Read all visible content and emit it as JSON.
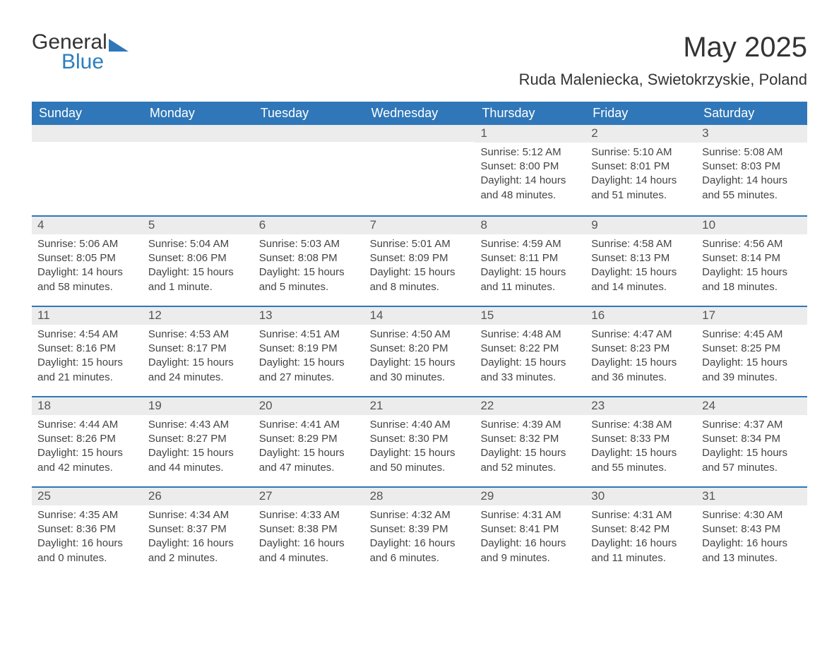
{
  "brand": {
    "word1": "General",
    "word2": "Blue",
    "icon_color": "#2f77b8"
  },
  "title": {
    "month_year": "May 2025",
    "location": "Ruda Maleniecka, Swietokrzyskie, Poland"
  },
  "style": {
    "header_bg": "#2f77b8",
    "header_fg": "#ffffff",
    "daynum_bg": "#ececec",
    "week_border": "#2f77b8",
    "text_color": "#444444",
    "title_color": "#333333",
    "month_fontsize": 40,
    "location_fontsize": 22,
    "weekday_fontsize": 18,
    "body_fontsize": 15
  },
  "weekdays": [
    "Sunday",
    "Monday",
    "Tuesday",
    "Wednesday",
    "Thursday",
    "Friday",
    "Saturday"
  ],
  "weeks": [
    [
      {
        "empty": true
      },
      {
        "empty": true
      },
      {
        "empty": true
      },
      {
        "empty": true
      },
      {
        "num": "1",
        "sunrise": "Sunrise: 5:12 AM",
        "sunset": "Sunset: 8:00 PM",
        "daylight": "Daylight: 14 hours and 48 minutes."
      },
      {
        "num": "2",
        "sunrise": "Sunrise: 5:10 AM",
        "sunset": "Sunset: 8:01 PM",
        "daylight": "Daylight: 14 hours and 51 minutes."
      },
      {
        "num": "3",
        "sunrise": "Sunrise: 5:08 AM",
        "sunset": "Sunset: 8:03 PM",
        "daylight": "Daylight: 14 hours and 55 minutes."
      }
    ],
    [
      {
        "num": "4",
        "sunrise": "Sunrise: 5:06 AM",
        "sunset": "Sunset: 8:05 PM",
        "daylight": "Daylight: 14 hours and 58 minutes."
      },
      {
        "num": "5",
        "sunrise": "Sunrise: 5:04 AM",
        "sunset": "Sunset: 8:06 PM",
        "daylight": "Daylight: 15 hours and 1 minute."
      },
      {
        "num": "6",
        "sunrise": "Sunrise: 5:03 AM",
        "sunset": "Sunset: 8:08 PM",
        "daylight": "Daylight: 15 hours and 5 minutes."
      },
      {
        "num": "7",
        "sunrise": "Sunrise: 5:01 AM",
        "sunset": "Sunset: 8:09 PM",
        "daylight": "Daylight: 15 hours and 8 minutes."
      },
      {
        "num": "8",
        "sunrise": "Sunrise: 4:59 AM",
        "sunset": "Sunset: 8:11 PM",
        "daylight": "Daylight: 15 hours and 11 minutes."
      },
      {
        "num": "9",
        "sunrise": "Sunrise: 4:58 AM",
        "sunset": "Sunset: 8:13 PM",
        "daylight": "Daylight: 15 hours and 14 minutes."
      },
      {
        "num": "10",
        "sunrise": "Sunrise: 4:56 AM",
        "sunset": "Sunset: 8:14 PM",
        "daylight": "Daylight: 15 hours and 18 minutes."
      }
    ],
    [
      {
        "num": "11",
        "sunrise": "Sunrise: 4:54 AM",
        "sunset": "Sunset: 8:16 PM",
        "daylight": "Daylight: 15 hours and 21 minutes."
      },
      {
        "num": "12",
        "sunrise": "Sunrise: 4:53 AM",
        "sunset": "Sunset: 8:17 PM",
        "daylight": "Daylight: 15 hours and 24 minutes."
      },
      {
        "num": "13",
        "sunrise": "Sunrise: 4:51 AM",
        "sunset": "Sunset: 8:19 PM",
        "daylight": "Daylight: 15 hours and 27 minutes."
      },
      {
        "num": "14",
        "sunrise": "Sunrise: 4:50 AM",
        "sunset": "Sunset: 8:20 PM",
        "daylight": "Daylight: 15 hours and 30 minutes."
      },
      {
        "num": "15",
        "sunrise": "Sunrise: 4:48 AM",
        "sunset": "Sunset: 8:22 PM",
        "daylight": "Daylight: 15 hours and 33 minutes."
      },
      {
        "num": "16",
        "sunrise": "Sunrise: 4:47 AM",
        "sunset": "Sunset: 8:23 PM",
        "daylight": "Daylight: 15 hours and 36 minutes."
      },
      {
        "num": "17",
        "sunrise": "Sunrise: 4:45 AM",
        "sunset": "Sunset: 8:25 PM",
        "daylight": "Daylight: 15 hours and 39 minutes."
      }
    ],
    [
      {
        "num": "18",
        "sunrise": "Sunrise: 4:44 AM",
        "sunset": "Sunset: 8:26 PM",
        "daylight": "Daylight: 15 hours and 42 minutes."
      },
      {
        "num": "19",
        "sunrise": "Sunrise: 4:43 AM",
        "sunset": "Sunset: 8:27 PM",
        "daylight": "Daylight: 15 hours and 44 minutes."
      },
      {
        "num": "20",
        "sunrise": "Sunrise: 4:41 AM",
        "sunset": "Sunset: 8:29 PM",
        "daylight": "Daylight: 15 hours and 47 minutes."
      },
      {
        "num": "21",
        "sunrise": "Sunrise: 4:40 AM",
        "sunset": "Sunset: 8:30 PM",
        "daylight": "Daylight: 15 hours and 50 minutes."
      },
      {
        "num": "22",
        "sunrise": "Sunrise: 4:39 AM",
        "sunset": "Sunset: 8:32 PM",
        "daylight": "Daylight: 15 hours and 52 minutes."
      },
      {
        "num": "23",
        "sunrise": "Sunrise: 4:38 AM",
        "sunset": "Sunset: 8:33 PM",
        "daylight": "Daylight: 15 hours and 55 minutes."
      },
      {
        "num": "24",
        "sunrise": "Sunrise: 4:37 AM",
        "sunset": "Sunset: 8:34 PM",
        "daylight": "Daylight: 15 hours and 57 minutes."
      }
    ],
    [
      {
        "num": "25",
        "sunrise": "Sunrise: 4:35 AM",
        "sunset": "Sunset: 8:36 PM",
        "daylight": "Daylight: 16 hours and 0 minutes."
      },
      {
        "num": "26",
        "sunrise": "Sunrise: 4:34 AM",
        "sunset": "Sunset: 8:37 PM",
        "daylight": "Daylight: 16 hours and 2 minutes."
      },
      {
        "num": "27",
        "sunrise": "Sunrise: 4:33 AM",
        "sunset": "Sunset: 8:38 PM",
        "daylight": "Daylight: 16 hours and 4 minutes."
      },
      {
        "num": "28",
        "sunrise": "Sunrise: 4:32 AM",
        "sunset": "Sunset: 8:39 PM",
        "daylight": "Daylight: 16 hours and 6 minutes."
      },
      {
        "num": "29",
        "sunrise": "Sunrise: 4:31 AM",
        "sunset": "Sunset: 8:41 PM",
        "daylight": "Daylight: 16 hours and 9 minutes."
      },
      {
        "num": "30",
        "sunrise": "Sunrise: 4:31 AM",
        "sunset": "Sunset: 8:42 PM",
        "daylight": "Daylight: 16 hours and 11 minutes."
      },
      {
        "num": "31",
        "sunrise": "Sunrise: 4:30 AM",
        "sunset": "Sunset: 8:43 PM",
        "daylight": "Daylight: 16 hours and 13 minutes."
      }
    ]
  ]
}
